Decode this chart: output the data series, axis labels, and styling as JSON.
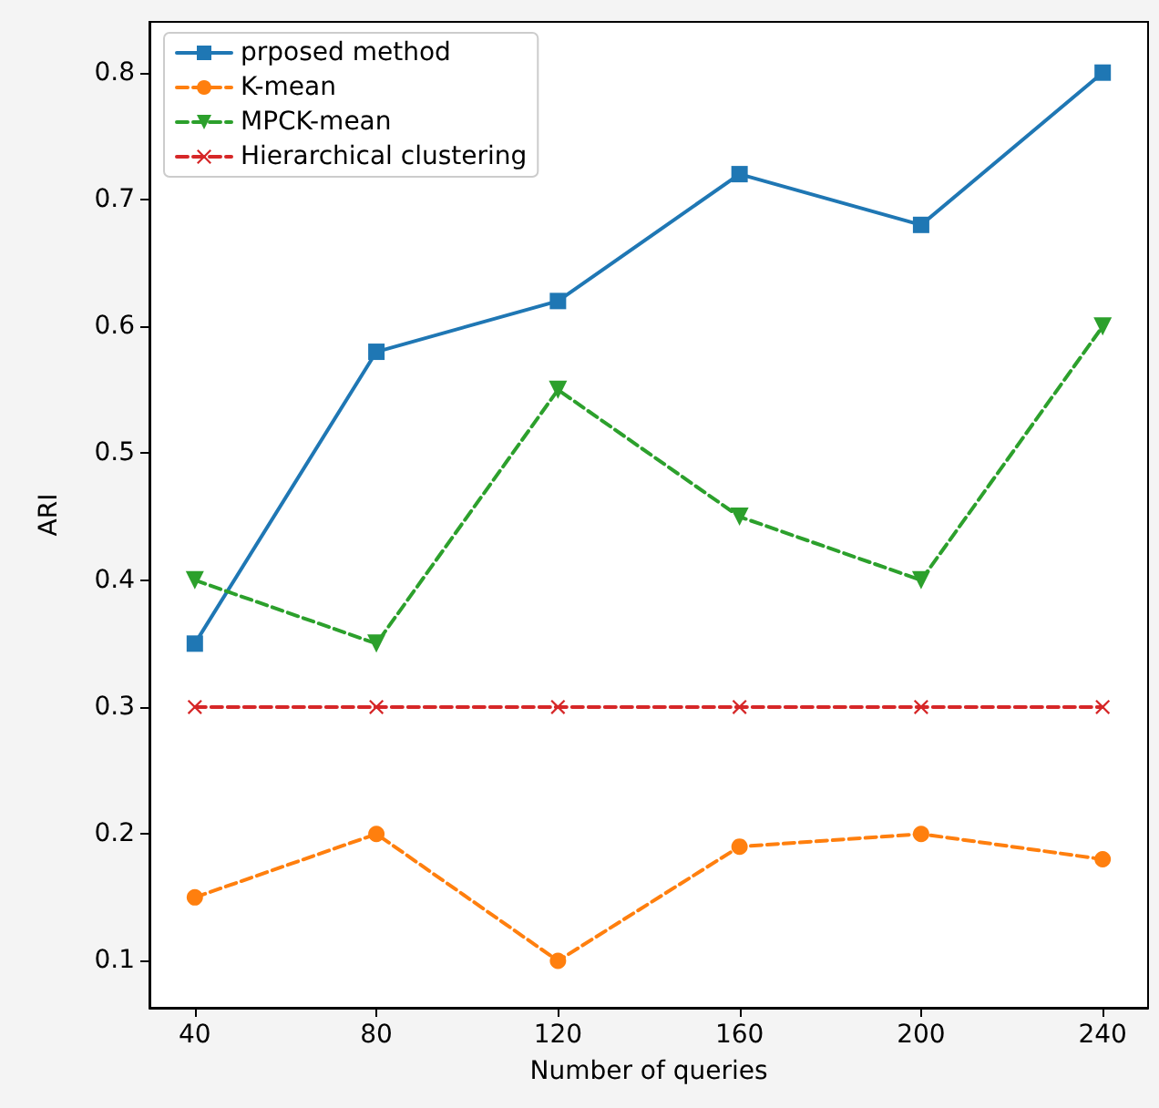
{
  "chart_data": {
    "type": "line",
    "xlabel": "Number of queries",
    "ylabel": "ARI",
    "x": [
      40,
      80,
      120,
      160,
      200,
      240
    ],
    "series": [
      {
        "name": "prposed method",
        "color": "#1f77b4",
        "marker": "square",
        "line_style": "solid",
        "values": [
          0.35,
          0.58,
          0.62,
          0.72,
          0.68,
          0.8
        ]
      },
      {
        "name": "K-mean",
        "color": "#ff7f0e",
        "marker": "circle",
        "line_style": "dashed",
        "values": [
          0.15,
          0.2,
          0.1,
          0.19,
          0.2,
          0.18
        ]
      },
      {
        "name": "MPCK-mean",
        "color": "#2ca02c",
        "marker": "triangle",
        "line_style": "dashed",
        "values": [
          0.4,
          0.35,
          0.55,
          0.45,
          0.4,
          0.6
        ]
      },
      {
        "name": "Hierarchical clustering",
        "color": "#d62728",
        "marker": "cross",
        "line_style": "dashed",
        "values": [
          0.3,
          0.3,
          0.3,
          0.3,
          0.3,
          0.3
        ]
      }
    ],
    "xlim": [
      30,
      250
    ],
    "xticks": [
      40,
      80,
      120,
      160,
      200,
      240
    ],
    "ylim": [
      0.063,
      0.84
    ],
    "yticks": [
      0.1,
      0.2,
      0.3,
      0.4,
      0.5,
      0.6,
      0.7,
      0.8
    ],
    "grid": false,
    "legend": "top left"
  }
}
